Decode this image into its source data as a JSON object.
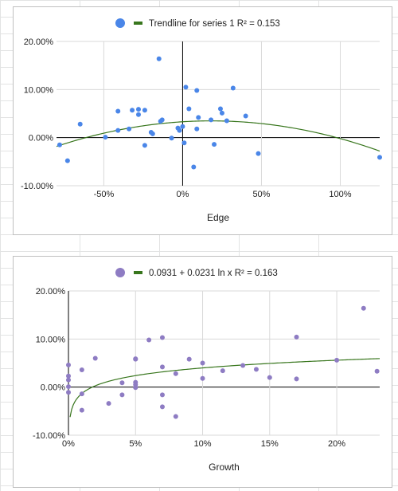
{
  "colors": {
    "grid": "#d9d9d9",
    "axis_zero": "#000000",
    "trend": "#38761d",
    "series1": "#4a86e8",
    "series2": "#8e7cc3"
  },
  "chart_data": [
    {
      "type": "scatter",
      "legend": {
        "marker_color": "#4a86e8",
        "trend_label": "Trendline for series 1 R² = 0.153",
        "placement": "top"
      },
      "xlabel": "Edge",
      "xlim": [
        -80,
        125
      ],
      "ylim": [
        -10,
        20
      ],
      "x_ticks": [
        {
          "v": -50,
          "label": "-50%"
        },
        {
          "v": 0,
          "label": "0%"
        },
        {
          "v": 50,
          "label": "50%"
        },
        {
          "v": 100,
          "label": "100%"
        }
      ],
      "y_ticks": [
        {
          "v": -10,
          "label": "-10.00%"
        },
        {
          "v": 0,
          "label": "0.00%"
        },
        {
          "v": 10,
          "label": "10.00%"
        },
        {
          "v": 20,
          "label": "20.00%"
        }
      ],
      "grid": true,
      "points": [
        [
          -78,
          -1.5
        ],
        [
          -73,
          -4.8
        ],
        [
          -65,
          2.8
        ],
        [
          -49,
          0.1
        ],
        [
          -41,
          5.5
        ],
        [
          -41,
          1.5
        ],
        [
          -34,
          1.8
        ],
        [
          -32,
          5.7
        ],
        [
          -28,
          5.9
        ],
        [
          -28,
          4.8
        ],
        [
          -24,
          5.7
        ],
        [
          -24,
          -1.6
        ],
        [
          -20,
          1.1
        ],
        [
          -19,
          0.8
        ],
        [
          -15,
          16.4
        ],
        [
          -14,
          3.4
        ],
        [
          -13,
          3.7
        ],
        [
          -7,
          -0.1
        ],
        [
          -3,
          2.0
        ],
        [
          -2,
          1.5
        ],
        [
          0,
          2.3
        ],
        [
          1,
          -1.1
        ],
        [
          2,
          10.5
        ],
        [
          4,
          6.0
        ],
        [
          7,
          -6.1
        ],
        [
          9,
          1.8
        ],
        [
          9,
          9.8
        ],
        [
          10,
          4.2
        ],
        [
          18,
          3.7
        ],
        [
          20,
          -1.4
        ],
        [
          24,
          6.0
        ],
        [
          25,
          5.1
        ],
        [
          28,
          3.5
        ],
        [
          32,
          10.3
        ],
        [
          40,
          4.5
        ],
        [
          48,
          -3.3
        ],
        [
          125,
          -4.1
        ]
      ],
      "trendline": {
        "type": "polynomial",
        "coeffs": [
          3.3,
          0.02,
          -0.00055
        ]
      }
    },
    {
      "type": "scatter",
      "legend": {
        "marker_color": "#8e7cc3",
        "trend_label": "0.0931 + 0.0231 ln x R² = 0.163",
        "placement": "top"
      },
      "xlabel": "Growth",
      "xlim": [
        0,
        23.2
      ],
      "ylim": [
        -10,
        20
      ],
      "x_ticks": [
        {
          "v": 0,
          "label": "0%"
        },
        {
          "v": 5,
          "label": "5%"
        },
        {
          "v": 10,
          "label": "10%"
        },
        {
          "v": 15,
          "label": "15%"
        },
        {
          "v": 20,
          "label": "20%"
        }
      ],
      "y_ticks": [
        {
          "v": -10,
          "label": "-10.00%"
        },
        {
          "v": 0,
          "label": "0.00%"
        },
        {
          "v": 10,
          "label": "10.00%"
        },
        {
          "v": 20,
          "label": "20.00%"
        }
      ],
      "grid": true,
      "points": [
        [
          0,
          4.6
        ],
        [
          0,
          2.3
        ],
        [
          0,
          1.5
        ],
        [
          0,
          -1.1
        ],
        [
          0,
          0.1
        ],
        [
          1,
          3.6
        ],
        [
          1,
          -1.4
        ],
        [
          1,
          -4.8
        ],
        [
          2,
          6.0
        ],
        [
          3,
          -3.4
        ],
        [
          4,
          0.9
        ],
        [
          4,
          -1.6
        ],
        [
          5,
          5.8
        ],
        [
          5,
          5.9
        ],
        [
          5,
          1.0
        ],
        [
          5,
          -0.1
        ],
        [
          5,
          0.5
        ],
        [
          6,
          9.8
        ],
        [
          7,
          10.3
        ],
        [
          7,
          4.2
        ],
        [
          7,
          -1.6
        ],
        [
          7,
          -4.1
        ],
        [
          8,
          2.8
        ],
        [
          8,
          -6.1
        ],
        [
          9,
          5.8
        ],
        [
          10,
          5.0
        ],
        [
          10,
          1.8
        ],
        [
          11.5,
          3.4
        ],
        [
          13,
          4.5
        ],
        [
          14,
          3.7
        ],
        [
          15,
          2.0
        ],
        [
          17,
          10.4
        ],
        [
          17,
          1.7
        ],
        [
          20,
          5.6
        ],
        [
          22,
          16.4
        ],
        [
          23,
          3.3
        ]
      ],
      "trendline": {
        "type": "log",
        "a": 9.31,
        "b": 2.31,
        "x_scale": 0.01
      }
    }
  ]
}
